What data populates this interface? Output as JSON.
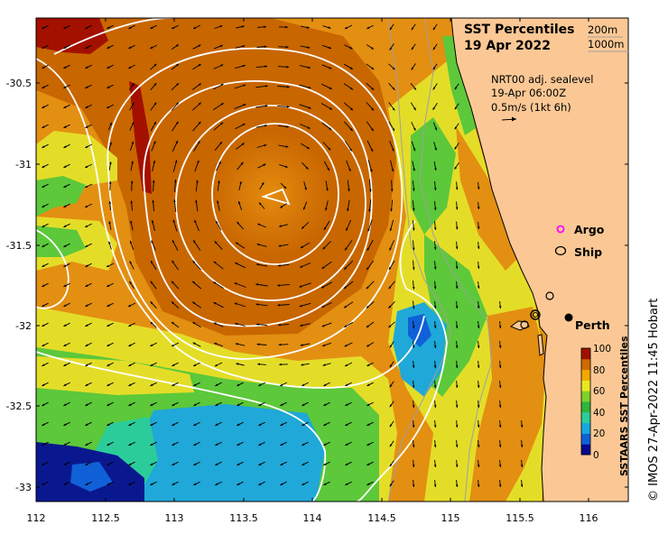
{
  "title": "SST Percentiles",
  "date": "19 Apr 2022",
  "depth_labels": [
    "200m",
    "1000m"
  ],
  "current_info": {
    "source": "NRT00 adj. sealevel",
    "time": "19-Apr 06:00Z",
    "scale": "0.5m/s (1kt 6h)"
  },
  "legend": {
    "argo": "Argo",
    "ship": "Ship",
    "argo_color": "#ff00ff"
  },
  "place": {
    "label": "Perth"
  },
  "x_ticks": [
    "112",
    "112.5",
    "113",
    "113.5",
    "114",
    "114.5",
    "115",
    "115.5",
    "116"
  ],
  "y_ticks": [
    "-30.5",
    "-31",
    "-31.5",
    "-32",
    "-32.5",
    "-33"
  ],
  "colorbar": {
    "title": "SSTAARS SST Percentiles",
    "ticks": [
      "100",
      "80",
      "60",
      "40",
      "20",
      "0"
    ],
    "colors": [
      "#08088f",
      "#1060d8",
      "#17a8e0",
      "#2ccc9a",
      "#2fb43c",
      "#7fd02a",
      "#e8e820",
      "#f2a800",
      "#d06a00",
      "#a01000"
    ]
  },
  "credit": "© IMOS 27-Apr-2022 11:45 Hobart",
  "colors": {
    "land": "#fbc895",
    "warm_core": "#c86600",
    "orange": "#e38f12",
    "yellow": "#e4dd28",
    "green": "#5cc83a",
    "cyan": "#1fa8d8",
    "blue": "#0a1890",
    "dark_red": "#a41000"
  }
}
